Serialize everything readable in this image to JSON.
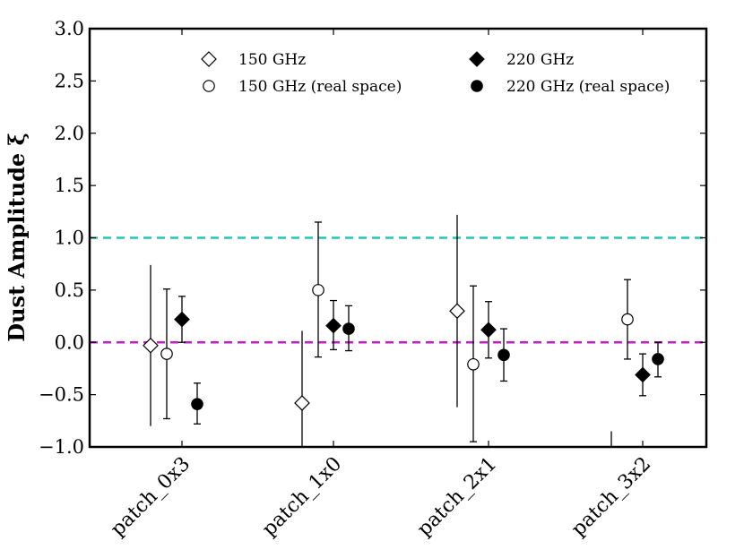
{
  "chart_data": {
    "type": "scatter",
    "ylabel": "Dust Amplitude ξ",
    "xlabel": "",
    "title": "",
    "ylim": [
      -1.0,
      3.0
    ],
    "yticks": [
      -1.0,
      -0.5,
      0.0,
      0.5,
      1.0,
      1.5,
      2.0,
      2.5,
      3.0
    ],
    "ytick_labels": [
      "−1.0",
      "−0.5",
      "0.0",
      "0.5",
      "1.0",
      "1.5",
      "2.0",
      "2.5",
      "3.0"
    ],
    "categories": [
      "patch_0x3",
      "patch_1x0",
      "patch_2x1",
      "patch_3x2"
    ],
    "legend_position": "top",
    "reference_lines": [
      {
        "y": 1.0,
        "color": "#1fc7b5",
        "style": "dashed"
      },
      {
        "y": 0.0,
        "color": "#c61ec6",
        "style": "dashed"
      }
    ],
    "series": [
      {
        "name": "150 GHz",
        "marker": "diamond-open",
        "values": [
          -0.03,
          -0.58,
          0.3,
          null
        ],
        "err_low": [
          -0.8,
          -1.05,
          -0.62,
          -1.05
        ],
        "err_high": [
          0.74,
          0.11,
          1.22,
          -0.85
        ]
      },
      {
        "name": "150 GHz (real space)",
        "marker": "circle-open",
        "values": [
          -0.11,
          0.5,
          -0.21,
          0.22
        ],
        "err_low": [
          -0.73,
          -0.14,
          -0.95,
          -0.16
        ],
        "err_high": [
          0.51,
          1.15,
          0.54,
          0.6
        ]
      },
      {
        "name": "220 GHz",
        "marker": "diamond-filled",
        "values": [
          0.22,
          0.16,
          0.12,
          -0.31
        ],
        "err_low": [
          0.0,
          -0.07,
          -0.15,
          -0.51
        ],
        "err_high": [
          0.44,
          0.4,
          0.39,
          -0.11
        ]
      },
      {
        "name": "220 GHz (real space)",
        "marker": "circle-filled",
        "values": [
          -0.59,
          0.13,
          -0.12,
          -0.16
        ],
        "err_low": [
          -0.78,
          -0.08,
          -0.37,
          -0.33
        ],
        "err_high": [
          -0.39,
          0.35,
          0.13,
          0.0
        ]
      }
    ]
  }
}
